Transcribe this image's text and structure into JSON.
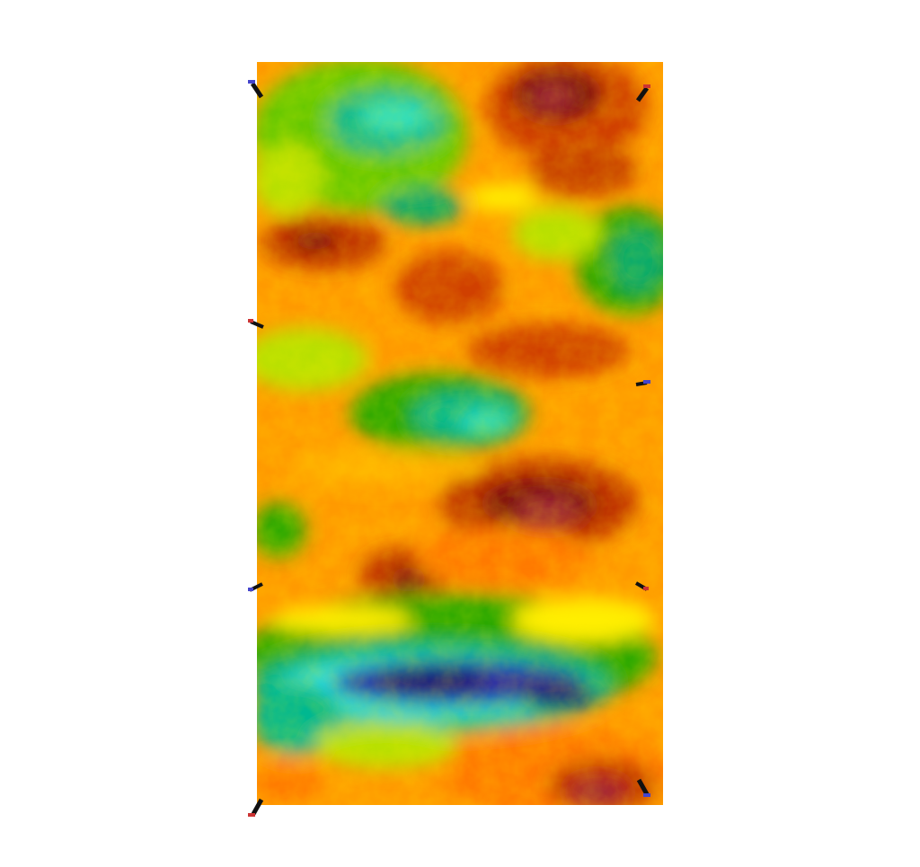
{
  "scene": {
    "background_color": "#ffffff",
    "description_type": "2D heatmap-like scalar field texture rendered as a rectangular panel",
    "palette": {
      "lowest": "#1a1a7a",
      "low": "#2b2ba8",
      "cyan": "#00e0e0",
      "teal": "#00a58a",
      "green": "#2aa800",
      "yellow_green": "#b8e000",
      "yellow": "#ffff00",
      "orange": "#ff7a00",
      "red_orange": "#e04000",
      "dark_red": "#7a0a0a",
      "maroon": "#8a1a2a"
    },
    "markers": [
      {
        "name": "corner-marker-top-left"
      },
      {
        "name": "corner-marker-top-right"
      },
      {
        "name": "edge-marker-left-upper"
      },
      {
        "name": "edge-marker-right-middle"
      },
      {
        "name": "edge-marker-left-lower"
      },
      {
        "name": "edge-marker-right-lower"
      },
      {
        "name": "corner-marker-bottom-left"
      },
      {
        "name": "corner-marker-bottom-right"
      }
    ],
    "marker_colors": {
      "body": "#111111",
      "tip_blue": "#4444cc",
      "tip_red": "#cc3333"
    }
  }
}
